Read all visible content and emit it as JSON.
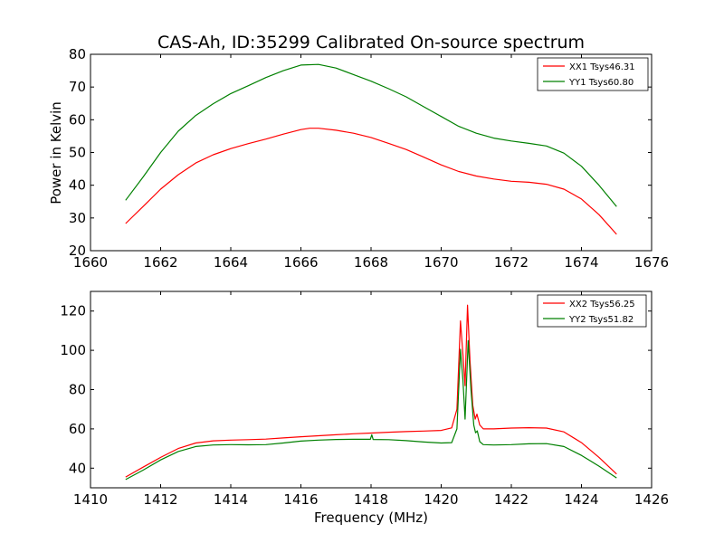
{
  "chart_data": [
    {
      "type": "line",
      "title": "CAS-Ah, ID:35299 Calibrated On-source spectrum",
      "xlabel": "",
      "ylabel": "Power in Kelvin",
      "xlim": [
        1660,
        1676
      ],
      "ylim": [
        20,
        80
      ],
      "xticks": [
        1660,
        1662,
        1664,
        1666,
        1668,
        1670,
        1672,
        1674,
        1676
      ],
      "yticks": [
        20,
        30,
        40,
        50,
        60,
        70,
        80
      ],
      "legend_position": "top-right",
      "grid": false,
      "series": [
        {
          "name": "XX1 Tsys46.31",
          "color": "#ff0000",
          "points": [
            [
              1661.0,
              28.3
            ],
            [
              1661.5,
              33.5
            ],
            [
              1662.0,
              38.8
            ],
            [
              1662.5,
              43.2
            ],
            [
              1663.0,
              46.8
            ],
            [
              1663.5,
              49.3
            ],
            [
              1664.0,
              51.2
            ],
            [
              1664.5,
              52.7
            ],
            [
              1665.0,
              54.1
            ],
            [
              1665.5,
              55.6
            ],
            [
              1666.0,
              57.0
            ],
            [
              1666.25,
              57.4
            ],
            [
              1666.5,
              57.4
            ],
            [
              1667.0,
              56.8
            ],
            [
              1667.5,
              55.9
            ],
            [
              1668.0,
              54.6
            ],
            [
              1668.5,
              52.8
            ],
            [
              1669.0,
              50.9
            ],
            [
              1669.5,
              48.6
            ],
            [
              1670.0,
              46.2
            ],
            [
              1670.5,
              44.2
            ],
            [
              1671.0,
              42.8
            ],
            [
              1671.5,
              41.9
            ],
            [
              1672.0,
              41.2
            ],
            [
              1672.5,
              40.9
            ],
            [
              1673.0,
              40.3
            ],
            [
              1673.5,
              38.8
            ],
            [
              1674.0,
              35.8
            ],
            [
              1674.5,
              31.0
            ],
            [
              1675.0,
              25.0
            ]
          ]
        },
        {
          "name": "YY1 Tsys60.80",
          "color": "#008000",
          "points": [
            [
              1661.0,
              35.4
            ],
            [
              1661.5,
              42.5
            ],
            [
              1662.0,
              50.0
            ],
            [
              1662.5,
              56.5
            ],
            [
              1663.0,
              61.3
            ],
            [
              1663.5,
              64.9
            ],
            [
              1664.0,
              68.0
            ],
            [
              1664.5,
              70.4
            ],
            [
              1665.0,
              72.9
            ],
            [
              1665.5,
              75.0
            ],
            [
              1666.0,
              76.7
            ],
            [
              1666.5,
              76.9
            ],
            [
              1667.0,
              75.8
            ],
            [
              1667.5,
              73.8
            ],
            [
              1668.0,
              71.8
            ],
            [
              1668.5,
              69.5
            ],
            [
              1669.0,
              67.0
            ],
            [
              1669.5,
              64.0
            ],
            [
              1670.0,
              61.0
            ],
            [
              1670.5,
              58.0
            ],
            [
              1671.0,
              55.9
            ],
            [
              1671.5,
              54.4
            ],
            [
              1672.0,
              53.5
            ],
            [
              1672.5,
              52.8
            ],
            [
              1673.0,
              52.0
            ],
            [
              1673.5,
              49.8
            ],
            [
              1674.0,
              45.8
            ],
            [
              1674.5,
              40.0
            ],
            [
              1675.0,
              33.5
            ]
          ]
        }
      ]
    },
    {
      "type": "line",
      "title": "",
      "xlabel": "Frequency (MHz)",
      "ylabel": "",
      "xlim": [
        1410,
        1426
      ],
      "ylim": [
        30,
        130
      ],
      "xticks": [
        1410,
        1412,
        1414,
        1416,
        1418,
        1420,
        1422,
        1424,
        1426
      ],
      "yticks": [
        40,
        60,
        80,
        100,
        120
      ],
      "legend_position": "top-right",
      "grid": false,
      "series": [
        {
          "name": "XX2 Tsys56.25",
          "color": "#ff0000",
          "points": [
            [
              1411.0,
              35.5
            ],
            [
              1411.5,
              40.5
            ],
            [
              1412.0,
              45.5
            ],
            [
              1412.5,
              50.0
            ],
            [
              1413.0,
              52.8
            ],
            [
              1413.5,
              53.9
            ],
            [
              1414.0,
              54.3
            ],
            [
              1414.5,
              54.5
            ],
            [
              1415.0,
              54.8
            ],
            [
              1415.5,
              55.4
            ],
            [
              1416.0,
              56.0
            ],
            [
              1416.5,
              56.5
            ],
            [
              1417.0,
              57.0
            ],
            [
              1417.5,
              57.5
            ],
            [
              1418.0,
              57.9
            ],
            [
              1418.5,
              58.3
            ],
            [
              1419.0,
              58.6
            ],
            [
              1419.5,
              58.9
            ],
            [
              1420.0,
              59.2
            ],
            [
              1420.3,
              60.5
            ],
            [
              1420.45,
              70.0
            ],
            [
              1420.55,
              115.0
            ],
            [
              1420.62,
              98.0
            ],
            [
              1420.68,
              82.0
            ],
            [
              1420.75,
              123.0
            ],
            [
              1420.82,
              95.0
            ],
            [
              1420.9,
              72.0
            ],
            [
              1420.97,
              65.0
            ],
            [
              1421.02,
              67.5
            ],
            [
              1421.1,
              62.0
            ],
            [
              1421.2,
              60.0
            ],
            [
              1421.5,
              60.0
            ],
            [
              1422.0,
              60.4
            ],
            [
              1422.5,
              60.6
            ],
            [
              1423.0,
              60.4
            ],
            [
              1423.5,
              58.5
            ],
            [
              1424.0,
              53.0
            ],
            [
              1424.5,
              45.5
            ],
            [
              1425.0,
              37.0
            ]
          ]
        },
        {
          "name": "YY2 Tsys51.82",
          "color": "#008000",
          "points": [
            [
              1411.0,
              34.2
            ],
            [
              1411.5,
              39.0
            ],
            [
              1412.0,
              44.2
            ],
            [
              1412.5,
              48.5
            ],
            [
              1413.0,
              51.0
            ],
            [
              1413.5,
              51.8
            ],
            [
              1414.0,
              52.0
            ],
            [
              1414.5,
              51.9
            ],
            [
              1415.0,
              52.0
            ],
            [
              1415.5,
              52.8
            ],
            [
              1416.0,
              53.8
            ],
            [
              1416.5,
              54.3
            ],
            [
              1417.0,
              54.6
            ],
            [
              1417.5,
              54.7
            ],
            [
              1417.98,
              54.7
            ],
            [
              1418.02,
              57.0
            ],
            [
              1418.06,
              54.6
            ],
            [
              1418.5,
              54.5
            ],
            [
              1419.0,
              54.0
            ],
            [
              1419.5,
              53.3
            ],
            [
              1420.0,
              52.8
            ],
            [
              1420.3,
              53.0
            ],
            [
              1420.45,
              60.0
            ],
            [
              1420.55,
              100.5
            ],
            [
              1420.62,
              85.0
            ],
            [
              1420.68,
              65.0
            ],
            [
              1420.77,
              105.0
            ],
            [
              1420.85,
              80.0
            ],
            [
              1420.93,
              62.0
            ],
            [
              1420.98,
              58.0
            ],
            [
              1421.03,
              59.0
            ],
            [
              1421.1,
              53.5
            ],
            [
              1421.2,
              52.0
            ],
            [
              1421.5,
              51.8
            ],
            [
              1422.0,
              52.0
            ],
            [
              1422.5,
              52.4
            ],
            [
              1423.0,
              52.5
            ],
            [
              1423.5,
              51.0
            ],
            [
              1424.0,
              46.5
            ],
            [
              1424.5,
              41.0
            ],
            [
              1425.0,
              35.0
            ]
          ]
        }
      ]
    }
  ]
}
